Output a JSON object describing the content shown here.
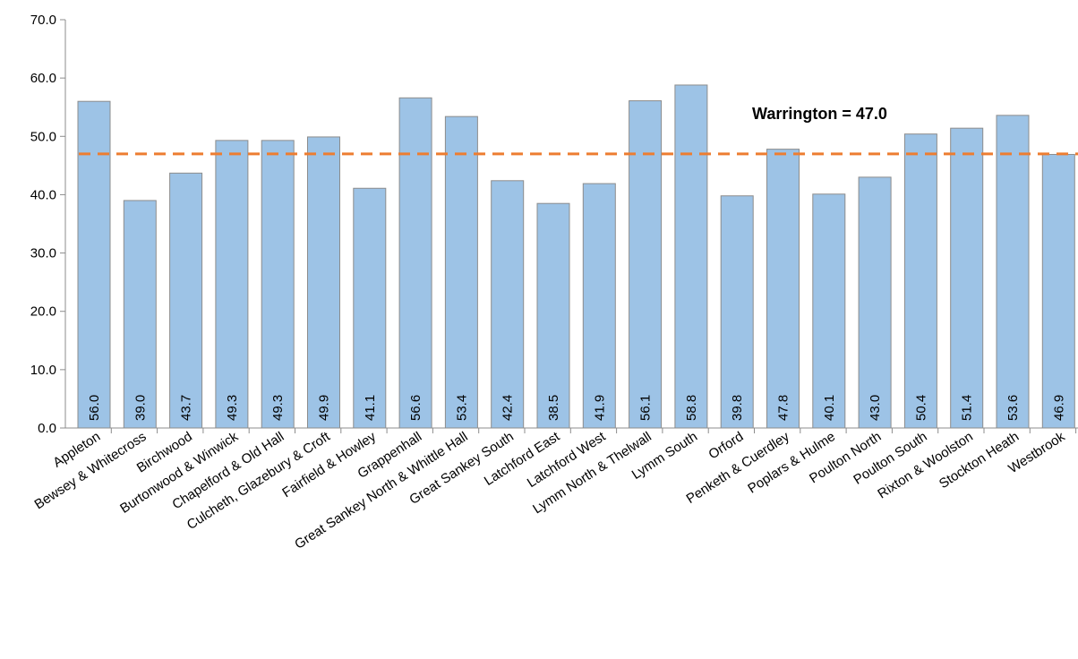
{
  "chart_data": {
    "type": "bar",
    "title": "",
    "xlabel": "",
    "ylabel": "",
    "ylim": [
      0,
      70
    ],
    "yticks": [
      "0.0",
      "10.0",
      "20.0",
      "30.0",
      "40.0",
      "50.0",
      "60.0",
      "70.0"
    ],
    "grid": false,
    "categories": [
      "Appleton",
      "Bewsey & Whitecross",
      "Birchwood",
      "Burtonwood & Winwick",
      "Chapelford & Old Hall",
      "Culcheth, Glazebury & Croft",
      "Fairfield & Howley",
      "Grappenhall",
      "Great Sankey North & Whittle Hall",
      "Great Sankey South",
      "Latchford East",
      "Latchford West",
      "Lymm North & Thelwall",
      "Lymm South",
      "Orford",
      "Penketh & Cuerdley",
      "Poplars & Hulme",
      "Poulton North",
      "Poulton South",
      "Rixton & Woolston",
      "Stockton Heath",
      "Westbrook"
    ],
    "values": [
      56.0,
      39.0,
      43.7,
      49.3,
      49.3,
      49.9,
      41.1,
      56.6,
      53.4,
      42.4,
      38.5,
      41.9,
      56.1,
      58.8,
      39.8,
      47.8,
      40.1,
      43.0,
      50.4,
      51.4,
      53.6,
      46.9
    ],
    "data_labels": [
      "56.0",
      "39.0",
      "43.7",
      "49.3",
      "49.3",
      "49.9",
      "41.1",
      "56.6",
      "53.4",
      "42.4",
      "38.5",
      "41.9",
      "56.1",
      "58.8",
      "39.8",
      "47.8",
      "40.1",
      "43.0",
      "50.4",
      "51.4",
      "53.6",
      "46.9"
    ],
    "bar_color": "#9dc3e6",
    "bar_border_color": "#8c8c8c",
    "reference_line": {
      "value": 47.0,
      "label": "Warrington = 47.0",
      "color": "#ed7d31",
      "style": "dashed"
    }
  }
}
